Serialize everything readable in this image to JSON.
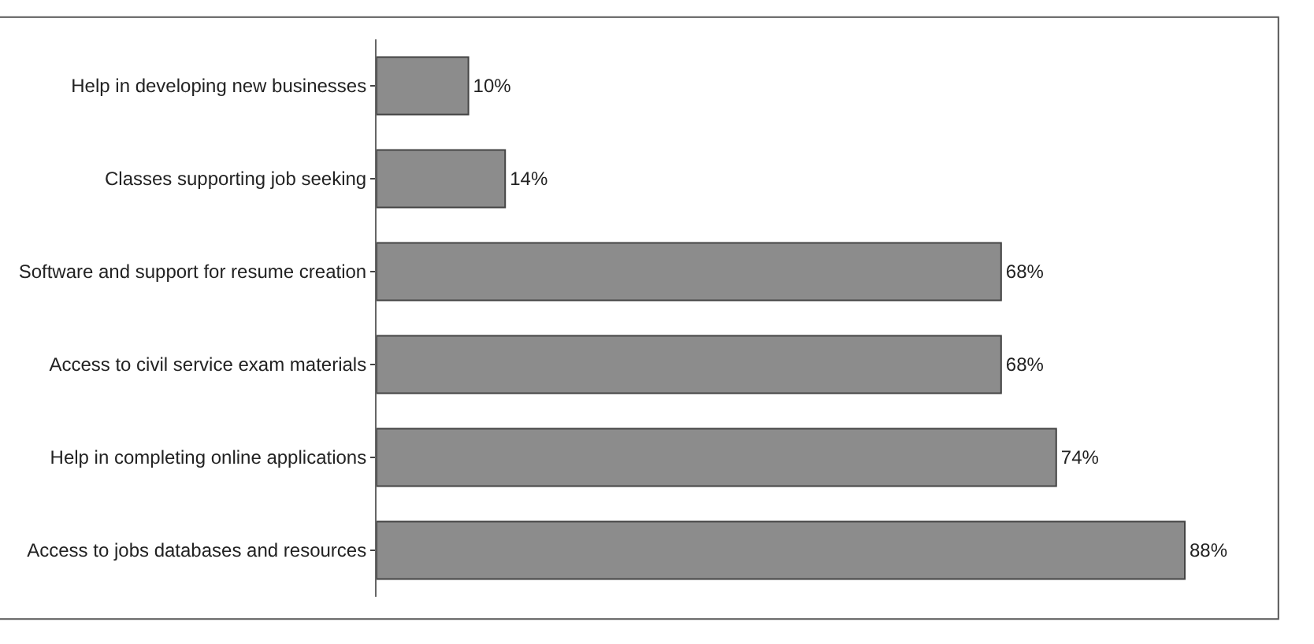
{
  "chart_data": {
    "type": "bar",
    "orientation": "horizontal",
    "categories": [
      "Help in developing new businesses",
      "Classes supporting job seeking",
      "Software and support for resume creation",
      "Access to civil service exam materials",
      "Help in completing online applications",
      "Access to jobs databases and resources"
    ],
    "values": [
      10,
      14,
      68,
      68,
      74,
      88
    ],
    "value_labels": [
      "10%",
      "14%",
      "68%",
      "68%",
      "74%",
      "88%"
    ],
    "color": "#8c8c8c"
  }
}
